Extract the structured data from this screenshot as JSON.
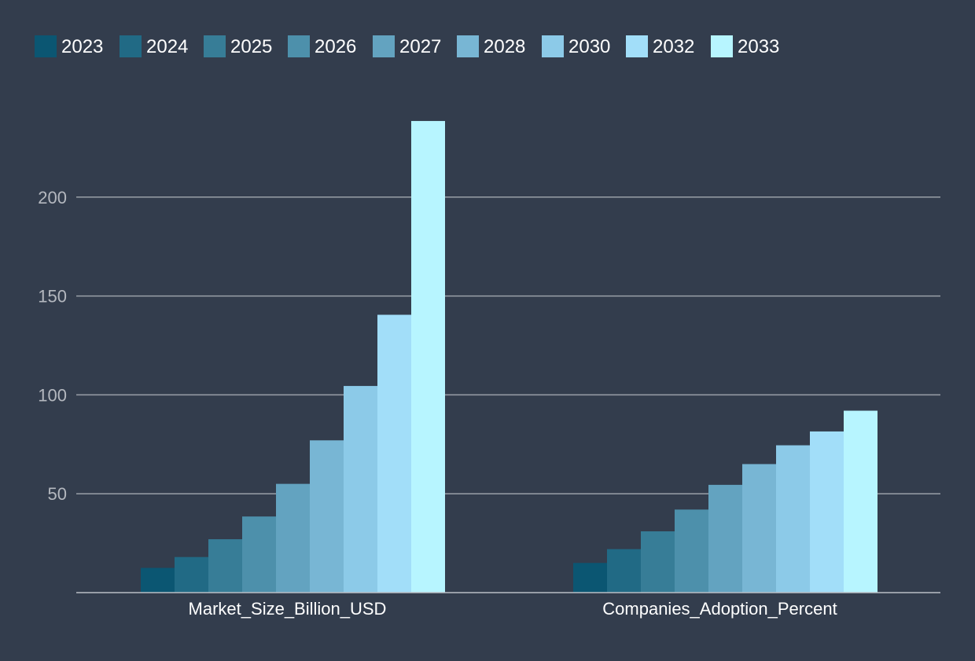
{
  "chart_data": {
    "type": "bar",
    "title": "",
    "xlabel": "",
    "ylabel": "",
    "categories": [
      "Market_Size_Billion_USD",
      "Companies_Adoption_Percent"
    ],
    "series": [
      {
        "name": "2023",
        "color": "#0b5672",
        "values": [
          12.5,
          15
        ]
      },
      {
        "name": "2024",
        "color": "#216a85",
        "values": [
          18,
          22
        ]
      },
      {
        "name": "2025",
        "color": "#377d97",
        "values": [
          27,
          31
        ]
      },
      {
        "name": "2026",
        "color": "#4d90ab",
        "values": [
          38.5,
          42
        ]
      },
      {
        "name": "2027",
        "color": "#63a3c0",
        "values": [
          55,
          54.5
        ]
      },
      {
        "name": "2028",
        "color": "#78b6d4",
        "values": [
          77,
          65
        ]
      },
      {
        "name": "2030",
        "color": "#8ccae8",
        "values": [
          104.5,
          74.5
        ]
      },
      {
        "name": "2032",
        "color": "#a2def9",
        "values": [
          140.5,
          81.5
        ]
      },
      {
        "name": "2033",
        "color": "#b7f5ff",
        "values": [
          238.5,
          92
        ]
      }
    ],
    "ylim": [
      0,
      240
    ],
    "yticks": [
      50,
      100,
      150,
      200
    ],
    "grid": true,
    "legend": "top-left"
  }
}
